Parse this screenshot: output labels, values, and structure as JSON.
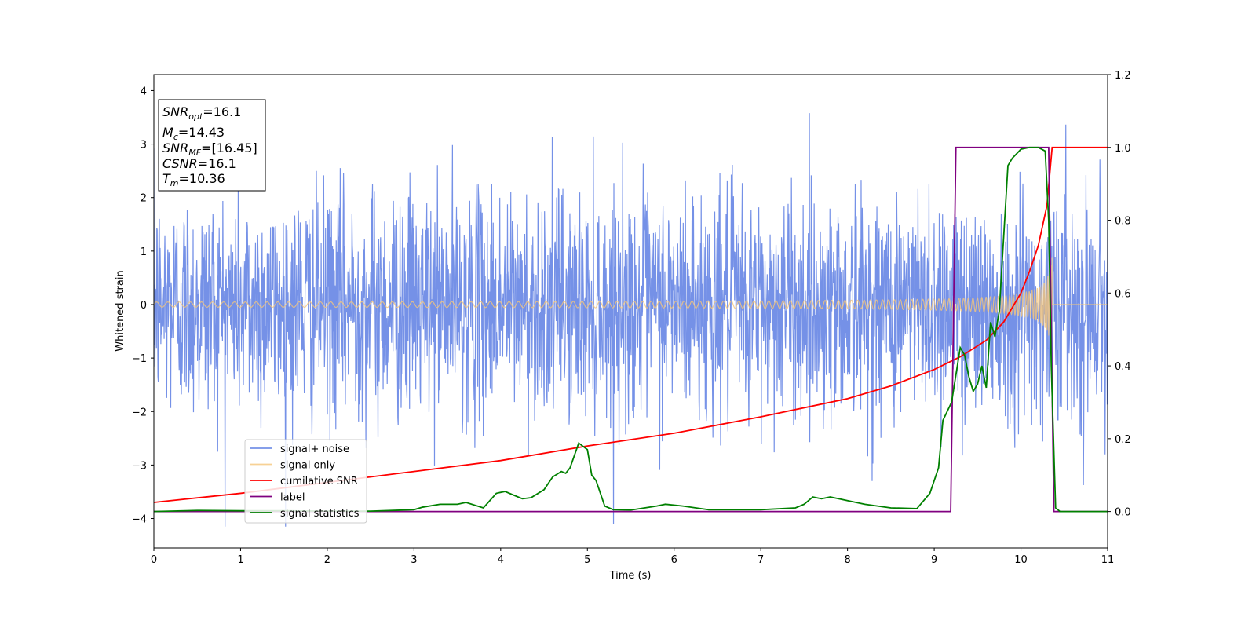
{
  "chart_data": {
    "type": "line",
    "xlabel": "Time (s)",
    "ylabel": "Whitened strain",
    "xlim": [
      0,
      11
    ],
    "ylim": [
      -4.55,
      4.3
    ],
    "y2lim": [
      -0.1,
      1.2
    ],
    "x_ticks": [
      0,
      1,
      2,
      3,
      4,
      5,
      6,
      7,
      8,
      9,
      10,
      11
    ],
    "y_ticks": [
      -4,
      -3,
      -2,
      -1,
      0,
      1,
      2,
      3,
      4
    ],
    "y_tick_labels": [
      "−4",
      "−3",
      "−2",
      "−1",
      "0",
      "1",
      "2",
      "3",
      "4"
    ],
    "y2_ticks": [
      0.0,
      0.2,
      0.4,
      0.6,
      0.8,
      1.0,
      1.2
    ],
    "y2_tick_labels": [
      "0.0",
      "0.2",
      "0.4",
      "0.6",
      "0.8",
      "1.0",
      "1.2"
    ],
    "annotation": {
      "lines": [
        {
          "base": "SNR",
          "sub": "opt",
          "value": "=16.1"
        },
        {
          "base": "M",
          "sub": "c",
          "value": "=14.43"
        },
        {
          "base": "SNR",
          "sub": "MF",
          "value": "=[16.45]"
        },
        {
          "base": "CSNR",
          "sub": "",
          "value": "=16.1"
        },
        {
          "base": "T",
          "sub": "m",
          "value": "=10.36"
        }
      ],
      "placement": "top-left"
    },
    "legend": {
      "placement": "lower-left",
      "entries": [
        "signal+ noise",
        "signal only",
        "cumilative SNR",
        "label",
        "signal statistics"
      ]
    },
    "series": [
      {
        "name": "signal+ noise",
        "axis": "left",
        "color": "#6e8be6",
        "kind": "noise",
        "std": 1.05,
        "max": 3.9,
        "min": -4.15
      },
      {
        "name": "signal only",
        "axis": "left",
        "color": "#f5c57a",
        "kind": "chirp",
        "merger_time": 10.36
      },
      {
        "name": "cumilative SNR",
        "axis": "right",
        "color": "#ff0000",
        "x": [
          0,
          1,
          2,
          3,
          4,
          5,
          6,
          7,
          8,
          8.5,
          9,
          9.3,
          9.6,
          9.8,
          10.0,
          10.1,
          10.2,
          10.3,
          10.36,
          10.37,
          11
        ],
        "y": [
          0.025,
          0.05,
          0.08,
          0.11,
          0.14,
          0.18,
          0.215,
          0.26,
          0.31,
          0.345,
          0.39,
          0.425,
          0.47,
          0.52,
          0.6,
          0.66,
          0.73,
          0.84,
          1.0,
          1.0,
          1.0
        ]
      },
      {
        "name": "label",
        "axis": "right",
        "color": "#800080",
        "x": [
          0,
          9.19,
          9.25,
          10.32,
          10.38,
          11
        ],
        "y": [
          0,
          0,
          1,
          1,
          0,
          0
        ]
      },
      {
        "name": "signal statistics",
        "axis": "right",
        "color": "#008000",
        "x": [
          0,
          0.5,
          1,
          1.5,
          2,
          2.5,
          3,
          3.1,
          3.3,
          3.5,
          3.6,
          3.8,
          3.95,
          4.05,
          4.15,
          4.25,
          4.35,
          4.5,
          4.6,
          4.7,
          4.75,
          4.8,
          4.9,
          5.0,
          5.05,
          5.1,
          5.2,
          5.3,
          5.5,
          5.8,
          5.9,
          6.1,
          6.4,
          7.0,
          7.4,
          7.5,
          7.6,
          7.7,
          7.8,
          7.9,
          8.0,
          8.2,
          8.5,
          8.8,
          8.95,
          9.05,
          9.1,
          9.2,
          9.3,
          9.35,
          9.4,
          9.45,
          9.5,
          9.55,
          9.6,
          9.65,
          9.7,
          9.75,
          9.8,
          9.85,
          9.9,
          10.0,
          10.1,
          10.2,
          10.28,
          10.32,
          10.35,
          10.4,
          10.45,
          10.6,
          11
        ],
        "y": [
          0.0,
          0.003,
          0.002,
          0.002,
          0.001,
          0.001,
          0.005,
          0.012,
          0.02,
          0.02,
          0.025,
          0.01,
          0.05,
          0.055,
          0.045,
          0.035,
          0.038,
          0.06,
          0.095,
          0.11,
          0.105,
          0.12,
          0.188,
          0.17,
          0.1,
          0.085,
          0.015,
          0.005,
          0.004,
          0.015,
          0.02,
          0.015,
          0.005,
          0.005,
          0.01,
          0.02,
          0.04,
          0.035,
          0.04,
          0.035,
          0.03,
          0.02,
          0.01,
          0.008,
          0.05,
          0.12,
          0.25,
          0.3,
          0.45,
          0.43,
          0.37,
          0.33,
          0.35,
          0.4,
          0.34,
          0.52,
          0.48,
          0.55,
          0.75,
          0.95,
          0.97,
          0.995,
          1.0,
          1.0,
          0.99,
          0.8,
          0.4,
          0.01,
          0.0,
          0.0,
          0.0
        ]
      }
    ]
  }
}
